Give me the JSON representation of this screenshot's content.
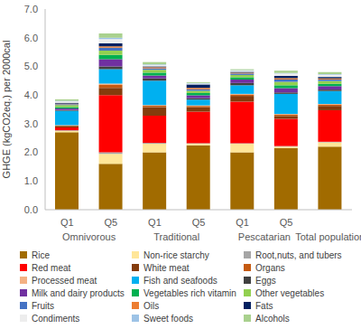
{
  "chart_data": {
    "type": "bar",
    "stacked": true,
    "grid": false,
    "legend": "bottom",
    "y_label": "GHGE (kgCO2eq.) per 2000cal",
    "categories": [
      "Q1",
      "Q5",
      "Q1",
      "Q5",
      "Q1",
      "Q5",
      null
    ],
    "category_groups": [
      "Omnivorous",
      "Omnivorous",
      "Traditional",
      "Traditional",
      "Pescatarian",
      "Pescatarian",
      "Total population"
    ],
    "ylim": [
      0,
      7
    ],
    "yticks": [
      {
        "value": 0,
        "label": "0.0"
      },
      {
        "value": 1,
        "label": "1.0"
      },
      {
        "value": 2,
        "label": "2.0"
      },
      {
        "value": 3,
        "label": "3.0"
      },
      {
        "value": 4,
        "label": "4.0"
      },
      {
        "value": 5,
        "label": "5.0"
      },
      {
        "value": 6,
        "label": "6.0"
      },
      {
        "value": 7,
        "label": "7.0"
      }
    ],
    "series": [
      {
        "name": "Rice",
        "color": "#a16b00",
        "values": [
          2.7,
          1.6,
          2.0,
          2.25,
          2.0,
          2.15,
          2.2
        ]
      },
      {
        "name": "Non-rice starchy",
        "color": "#ffe699",
        "values": [
          0.05,
          0.35,
          0.3,
          0.05,
          0.3,
          0.05,
          0.15
        ]
      },
      {
        "name": "Root,nuts, and tubers",
        "color": "#a6a6a6",
        "values": [
          0.02,
          0.05,
          0.03,
          0.02,
          0.02,
          0.02,
          0.02
        ]
      },
      {
        "name": "Red meat",
        "color": "#ff0000",
        "values": [
          0.1,
          2.0,
          0.95,
          1.1,
          1.45,
          0.95,
          1.1
        ]
      },
      {
        "name": "White meat",
        "color": "#843c0c",
        "values": [
          0.05,
          0.25,
          0.3,
          0.15,
          0.2,
          0.1,
          0.15
        ]
      },
      {
        "name": "Organs",
        "color": "#c55a11",
        "values": [
          0.02,
          0.1,
          0.05,
          0.05,
          0.05,
          0.05,
          0.05
        ]
      },
      {
        "name": "Processed meat",
        "color": "#f4b183",
        "values": [
          0.01,
          0.05,
          0.02,
          0.02,
          0.02,
          0.02,
          0.02
        ]
      },
      {
        "name": "Fish and seafoods",
        "color": "#00b0f0",
        "values": [
          0.5,
          0.5,
          0.85,
          0.2,
          0.3,
          0.7,
          0.45
        ]
      },
      {
        "name": "Eggs",
        "color": "#404040",
        "values": [
          0.03,
          0.1,
          0.08,
          0.05,
          0.08,
          0.05,
          0.05
        ]
      },
      {
        "name": "Milk and dairy products",
        "color": "#7030a0",
        "values": [
          0.05,
          0.25,
          0.1,
          0.1,
          0.12,
          0.15,
          0.12
        ]
      },
      {
        "name": "Vegetables rich vitamin",
        "color": "#00b050",
        "values": [
          0.05,
          0.15,
          0.1,
          0.08,
          0.08,
          0.1,
          0.08
        ]
      },
      {
        "name": "Other vegetables",
        "color": "#92d050",
        "values": [
          0.07,
          0.15,
          0.1,
          0.08,
          0.08,
          0.12,
          0.1
        ]
      },
      {
        "name": "Fruits",
        "color": "#4472c4",
        "values": [
          0.03,
          0.1,
          0.05,
          0.05,
          0.05,
          0.08,
          0.05
        ]
      },
      {
        "name": "Oils",
        "color": "#ed7d31",
        "values": [
          0.02,
          0.05,
          0.04,
          0.05,
          0.03,
          0.05,
          0.04
        ]
      },
      {
        "name": "Fats",
        "color": "#002060",
        "values": [
          0.03,
          0.1,
          0.03,
          0.12,
          0.03,
          0.08,
          0.05
        ]
      },
      {
        "name": "Condiments",
        "color": "#ededed",
        "values": [
          0.05,
          0.15,
          0.05,
          0.03,
          0.04,
          0.08,
          0.08
        ]
      },
      {
        "name": "Sweet foods",
        "color": "#9dc3e6",
        "values": [
          0.02,
          0.05,
          0.02,
          0.02,
          0.02,
          0.02,
          0.02
        ]
      },
      {
        "name": "Alcohols",
        "color": "#a9d18e",
        "values": [
          0.05,
          0.15,
          0.08,
          0.03,
          0.03,
          0.08,
          0.07
        ]
      }
    ]
  }
}
